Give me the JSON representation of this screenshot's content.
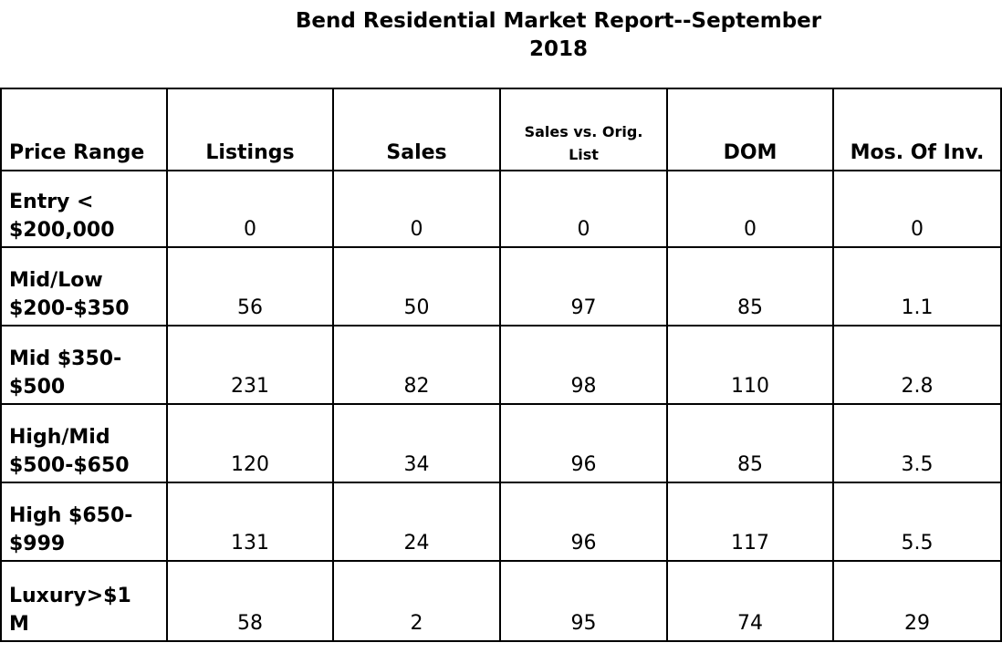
{
  "document": {
    "title_line1": "Bend Residential Market Report--September",
    "title_line2": "2018"
  },
  "table": {
    "headers": {
      "price_range": "Price Range",
      "listings": "Listings",
      "sales": "Sales",
      "sales_vs_orig_list_line1": "Sales vs. Orig.",
      "sales_vs_orig_list_line2": "List",
      "dom": "DOM",
      "mos_of_inv": "Mos. Of Inv."
    },
    "rows": [
      {
        "range_line1": "Entry <",
        "range_line2": "$200,000",
        "listings": "0",
        "sales": "0",
        "sales_vs_orig_list": "0",
        "dom": "0",
        "mos_of_inv": "0"
      },
      {
        "range_line1": "Mid/Low",
        "range_line2": "$200-$350",
        "listings": "56",
        "sales": "50",
        "sales_vs_orig_list": "97",
        "dom": "85",
        "mos_of_inv": "1.1"
      },
      {
        "range_line1": "Mid $350-",
        "range_line2": "$500",
        "listings": "231",
        "sales": "82",
        "sales_vs_orig_list": "98",
        "dom": "110",
        "mos_of_inv": "2.8"
      },
      {
        "range_line1": "High/Mid",
        "range_line2": "$500-$650",
        "listings": "120",
        "sales": "34",
        "sales_vs_orig_list": "96",
        "dom": "85",
        "mos_of_inv": "3.5"
      },
      {
        "range_line1": "High $650-",
        "range_line2": "$999",
        "listings": "131",
        "sales": "24",
        "sales_vs_orig_list": "96",
        "dom": "117",
        "mos_of_inv": "5.5"
      },
      {
        "range_line1": "Luxury>$1",
        "range_line2": "M",
        "listings": "58",
        "sales": "2",
        "sales_vs_orig_list": "95",
        "dom": "74",
        "mos_of_inv": "29"
      }
    ]
  }
}
